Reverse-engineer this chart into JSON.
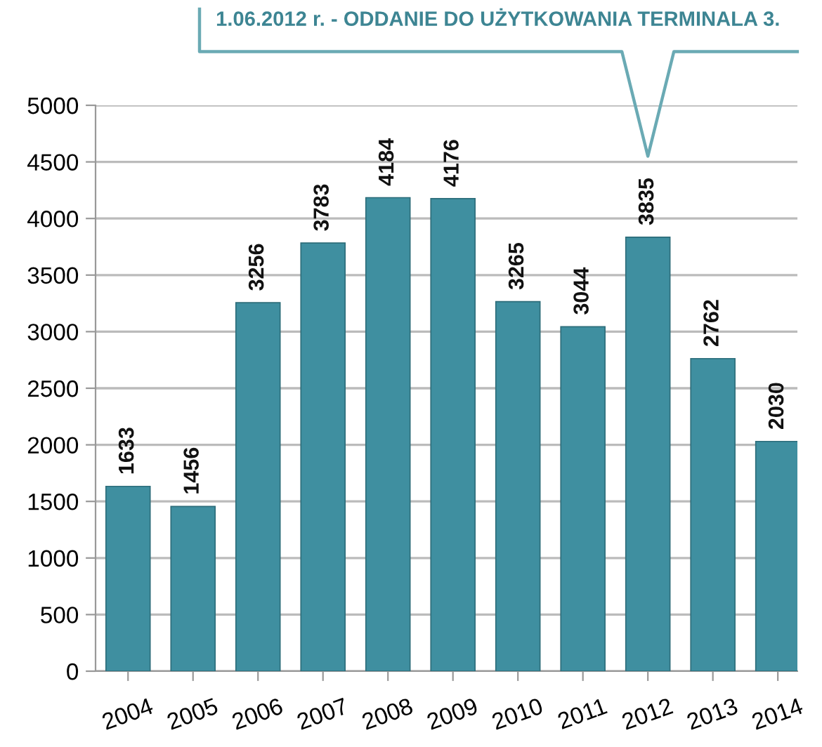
{
  "chart_data": {
    "type": "bar",
    "categories": [
      "2004",
      "2005",
      "2006",
      "2007",
      "2008",
      "2009",
      "2010",
      "2011",
      "2012",
      "2013",
      "2014"
    ],
    "values": [
      1633,
      1456,
      3256,
      3783,
      4184,
      4176,
      3265,
      3044,
      3835,
      2762,
      2030
    ],
    "color": "#3f8fa0",
    "ylim": [
      0,
      5000
    ],
    "yticks": [
      0,
      500,
      1000,
      1500,
      2000,
      2500,
      3000,
      3500,
      4000,
      4500,
      5000
    ],
    "grid": "y",
    "data_labels": true,
    "annotations": [
      "1.06.2012 r. - ODDANIE DO UŻYTKOWANIA TERMINALA 3."
    ]
  }
}
